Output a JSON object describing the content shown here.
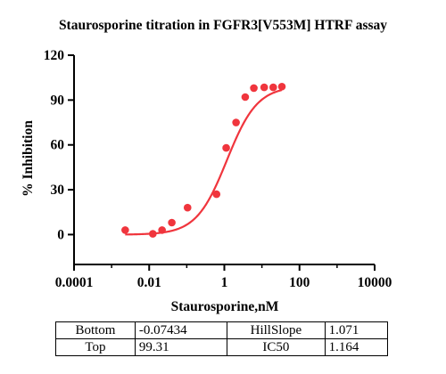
{
  "chart_data": {
    "type": "scatter",
    "title": "Staurosporine titration in FGFR3[V553M] HTRF assay",
    "xlabel": "Staurosporine,nM",
    "ylabel": "% Inhibition",
    "xscale": "log",
    "xlim": [
      0.0001,
      10000
    ],
    "ylim": [
      -20,
      120
    ],
    "x_ticks": [
      0.0001,
      0.01,
      1,
      100,
      10000
    ],
    "x_tick_labels": [
      "0.0001",
      "0.01",
      "1",
      "100",
      "10000"
    ],
    "y_ticks": [
      0,
      30,
      60,
      90,
      120
    ],
    "y_tick_labels": [
      "0",
      "30",
      "60",
      "90",
      "120"
    ],
    "grid": false,
    "series": [
      {
        "points": [
          {
            "x": 0.0023,
            "y": 3.0
          },
          {
            "x": 0.0125,
            "y": 0.5
          },
          {
            "x": 0.022,
            "y": 3.0
          },
          {
            "x": 0.04,
            "y": 8.0
          },
          {
            "x": 0.105,
            "y": 18.0
          },
          {
            "x": 0.62,
            "y": 27.0
          },
          {
            "x": 1.12,
            "y": 58.0
          },
          {
            "x": 2.05,
            "y": 75.0
          },
          {
            "x": 3.6,
            "y": 92.0
          },
          {
            "x": 6.1,
            "y": 98.0
          },
          {
            "x": 11.5,
            "y": 98.5
          },
          {
            "x": 20,
            "y": 98.5
          },
          {
            "x": 34,
            "y": 99.0
          }
        ],
        "fit": {
          "model": "four-parameter logistic",
          "bottom": -0.07434,
          "top": 99.31,
          "hillslope": 1.071,
          "ic50": 1.164,
          "x_range": [
            0.0023,
            34
          ]
        },
        "color": "#f0353d"
      }
    ],
    "parameters_table": [
      [
        "Bottom",
        "-0.07434",
        "HillSlope",
        "1.071"
      ],
      [
        "Top",
        "99.31",
        "IC50",
        "1.164"
      ]
    ]
  }
}
